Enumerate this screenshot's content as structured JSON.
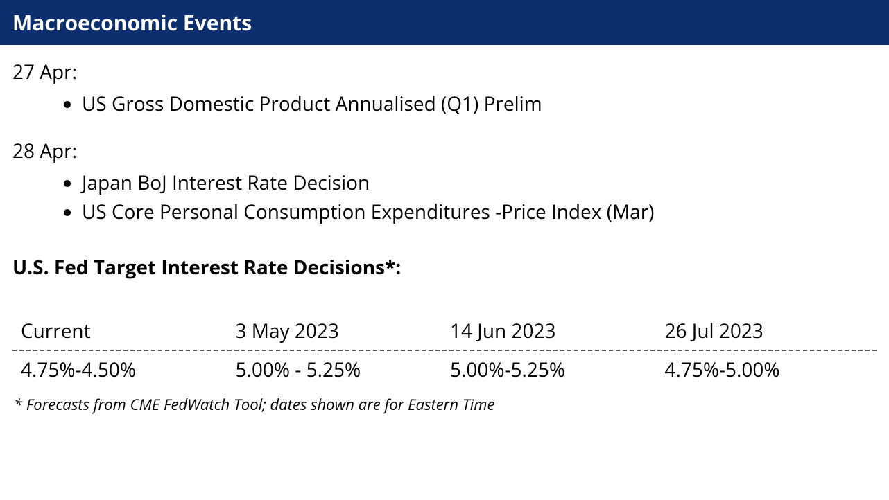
{
  "header": {
    "title": "Macroeconomic Events"
  },
  "blocks": [
    {
      "date": "27 Apr:",
      "items": [
        "US Gross Domestic Product Annualised (Q1) Prelim"
      ]
    },
    {
      "date": "28 Apr:",
      "items": [
        "Japan BoJ Interest Rate Decision",
        "US Core Personal Consumption Expenditures -Price Index (Mar)"
      ]
    }
  ],
  "subheading": "U.S. Fed Target Interest Rate Decisions*:",
  "rate_table": {
    "columns": [
      "Current",
      "3 May 2023",
      "14 Jun 2023",
      "26 Jul 2023"
    ],
    "row": [
      "4.75%-4.50%",
      "5.00% - 5.25%",
      "5.00%-5.25%",
      "4.75%-5.00%"
    ],
    "header_fontsize": 28,
    "row_fontsize": 28,
    "separator_color": "#555555",
    "separator_style": "dashed"
  },
  "footnote": "* Forecasts from CME FedWatch Tool; dates shown are for Eastern Time",
  "colors": {
    "header_bg": "#0c2f6e",
    "header_text": "#ffffff",
    "body_text": "#000000",
    "background": "#ffffff"
  }
}
